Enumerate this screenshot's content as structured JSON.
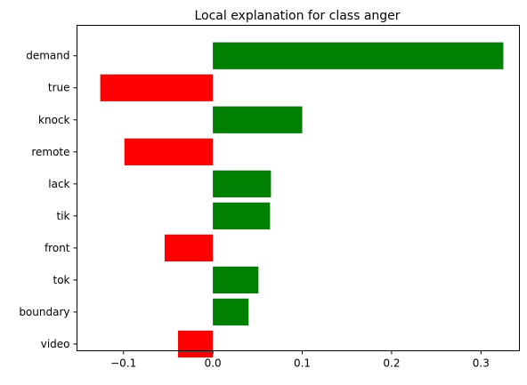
{
  "chart_data": {
    "type": "bar",
    "orientation": "horizontal",
    "title": "Local explanation for class anger",
    "xlabel": "",
    "ylabel": "",
    "xlim": [
      -0.152,
      0.343
    ],
    "xticks": [
      -0.1,
      0.0,
      0.1,
      0.2,
      0.3
    ],
    "xtick_labels": [
      "−0.1",
      "0.0",
      "0.1",
      "0.2",
      "0.3"
    ],
    "categories": [
      "demand",
      "true",
      "knock",
      "remote",
      "lack",
      "tik",
      "front",
      "tok",
      "boundary",
      "video"
    ],
    "values": [
      0.325,
      -0.126,
      0.1,
      -0.099,
      0.065,
      0.064,
      -0.054,
      0.051,
      0.04,
      -0.039
    ],
    "positive_color": "#008000",
    "negative_color": "#ff0000",
    "grid": false,
    "legend": "none"
  }
}
